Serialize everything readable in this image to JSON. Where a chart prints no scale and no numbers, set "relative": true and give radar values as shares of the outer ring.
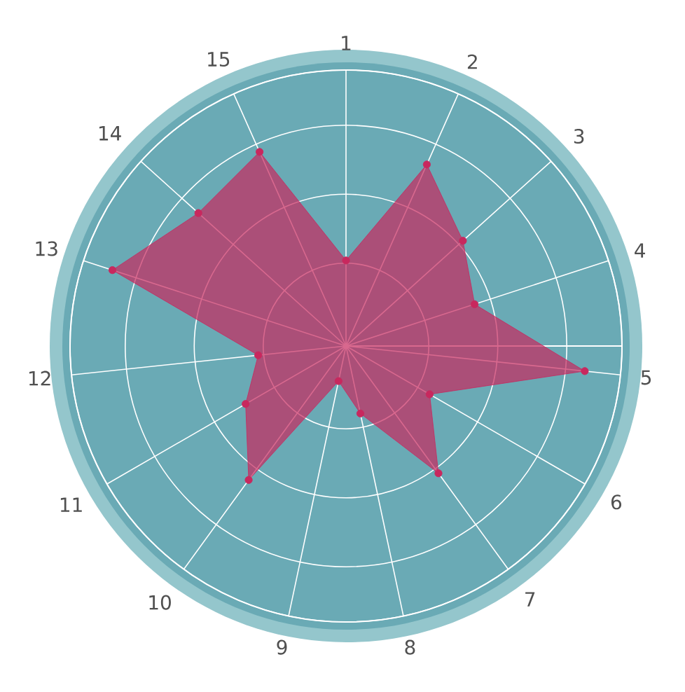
{
  "chart_data": {
    "type": "radar",
    "relative": true,
    "marker": "circle",
    "categories": [
      "1",
      "2",
      "3",
      "4",
      "5",
      "6",
      "7",
      "8",
      "9",
      "10",
      "11",
      "12",
      "13",
      "14",
      "15"
    ],
    "series": [
      {
        "color": "#c8285e",
        "values": [
          0.31,
          0.72,
          0.57,
          0.49,
          0.87,
          0.35,
          0.57,
          0.25,
          0.13,
          0.6,
          0.42,
          0.32,
          0.89,
          0.72,
          0.77
        ]
      }
    ]
  }
}
